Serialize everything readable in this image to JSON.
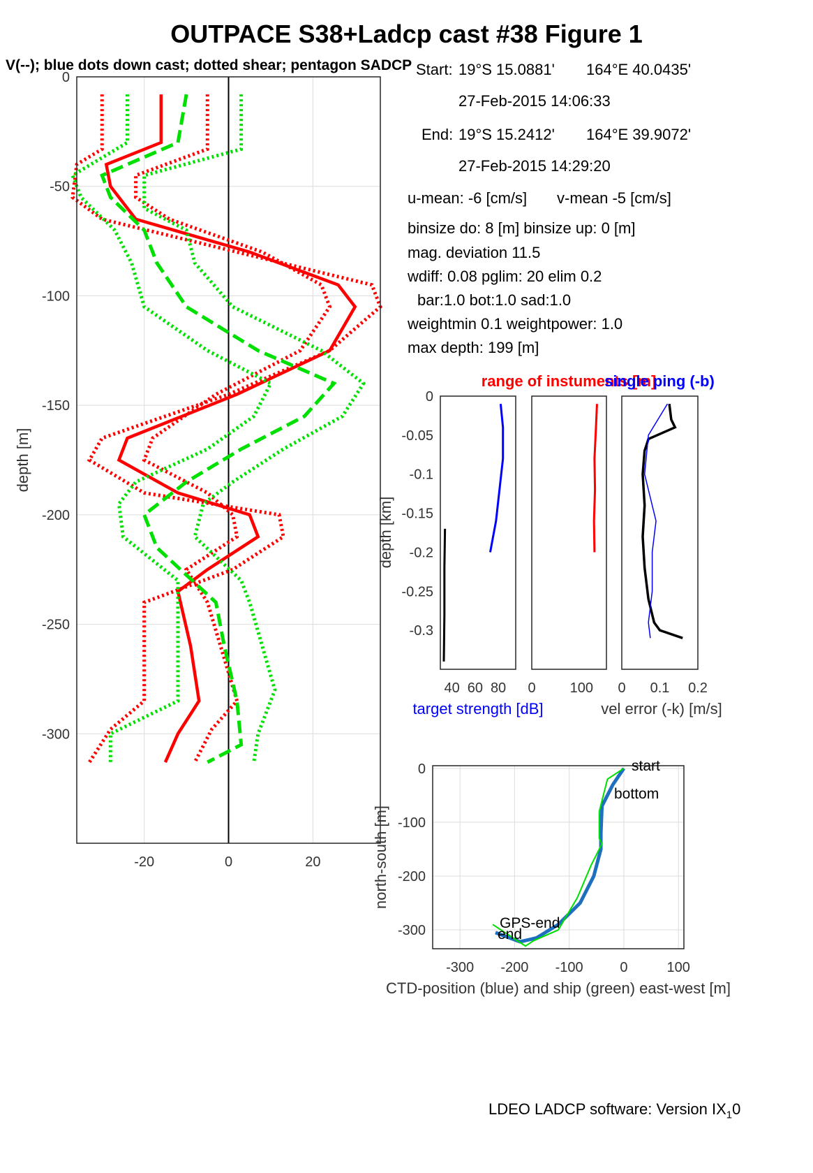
{
  "figure": {
    "title": "OUTPACE S38+Ladcp cast #38  Figure 1",
    "subtitle": "V(--); blue dots down cast; dotted shear; pentagon SADCP",
    "footer": "LDEO LADCP software: Version IX",
    "footer_sub": "1",
    "footer_suffix": "0"
  },
  "info": {
    "start_label": "Start:",
    "start_lat": "19°S 15.0881'",
    "start_lon": "164°E 40.0435'",
    "start_time": "27-Feb-2015 14:06:33",
    "end_label": "End:",
    "end_lat": "19°S 15.2412'",
    "end_lon": "164°E 39.9072'",
    "end_time": "27-Feb-2015 14:29:20",
    "u_mean": "u-mean:  -6 [cm/s]",
    "v_mean": "v-mean  -5 [cm/s]",
    "binsize": "binsize do: 8 [m]  binsize up:  0 [m]",
    "mag_dev": "mag. deviation 11.5",
    "wdiff": "wdiff: 0.08  pglim: 20  elim 0.2",
    "bar": "bar:1.0 bot:1.0 sad:1.0",
    "weight": "weightmin 0.1  weightpower: 1.0",
    "max_depth": "max depth: 199 [m]"
  },
  "colors": {
    "u": "#ff0000",
    "v": "#00e000",
    "blue": "#0000ff",
    "ctd": "#1f6fc0",
    "black": "#000000"
  },
  "chart_data": [
    {
      "type": "line",
      "name": "velocity-profile",
      "ylabel": "depth [m]",
      "xlim": [
        -36,
        36
      ],
      "ylim": [
        -350,
        0
      ],
      "xticks": [
        -20,
        0,
        20
      ],
      "yticks": [
        0,
        -50,
        -100,
        -150,
        -200,
        -250,
        -300
      ],
      "xtick_labels": [
        "-20",
        "0",
        "20"
      ],
      "ytick_labels": [
        "0",
        "-50",
        "-100",
        "-150",
        "-200",
        "-250",
        "-300"
      ],
      "grid": true,
      "series": [
        {
          "color": "#ff0000",
          "style": "solid-thick",
          "depth": [
            -8,
            -30,
            -40,
            -50,
            -65,
            -80,
            -95,
            -105,
            -125,
            -145,
            -165,
            -175,
            -190,
            -200,
            -210,
            -225,
            -235,
            -260,
            -285,
            -300,
            -313
          ],
          "values": [
            -16,
            -16,
            -29,
            -28,
            -22,
            5,
            26,
            30,
            24,
            2,
            -24,
            -26,
            -12,
            5,
            7,
            -5,
            -12,
            -9,
            -7,
            -12,
            -15
          ]
        },
        {
          "color": "#ff0000",
          "style": "dotted",
          "depth": [
            -8,
            -33,
            -40,
            -55,
            -65,
            -80,
            -95,
            -105,
            -125,
            -145,
            -165,
            -175,
            -190,
            -200,
            -210,
            -225,
            -240,
            -285,
            -298,
            -313
          ],
          "values": [
            -30,
            -30,
            -36,
            -37,
            -30,
            2,
            34,
            36,
            24,
            0,
            -30,
            -33,
            -20,
            12,
            13,
            1,
            -20,
            -20,
            -28,
            -33
          ]
        },
        {
          "color": "#ff0000",
          "style": "dotted",
          "depth": [
            -8,
            -33,
            -45,
            -55,
            -65,
            -80,
            -95,
            -105,
            -125,
            -145,
            -165,
            -175,
            -190,
            -200,
            -210,
            -225,
            -240,
            -285,
            -298,
            -313
          ],
          "values": [
            -5,
            -5,
            -22,
            -22,
            -14,
            8,
            22,
            24,
            17,
            -3,
            -18,
            -20,
            -5,
            1,
            2,
            -10,
            -5,
            2,
            -4,
            -8
          ]
        },
        {
          "color": "#00e000",
          "style": "dashed-thick",
          "depth": [
            -8,
            -30,
            -45,
            -55,
            -70,
            -85,
            -105,
            -125,
            -140,
            -155,
            -170,
            -185,
            -200,
            -215,
            -240,
            -260,
            -285,
            -305,
            -313
          ],
          "values": [
            -10,
            -12,
            -30,
            -28,
            -20,
            -17,
            -10,
            7,
            25,
            18,
            3,
            -10,
            -20,
            -17,
            -3,
            -1,
            2,
            3,
            -5
          ]
        },
        {
          "color": "#00e000",
          "style": "dotted",
          "depth": [
            -8,
            -33,
            -45,
            -60,
            -70,
            -85,
            -105,
            -125,
            -140,
            -155,
            -170,
            -185,
            -195,
            -210,
            -230,
            -240,
            -280,
            -300,
            -313
          ],
          "values": [
            3,
            3,
            -20,
            -20,
            -10,
            -8,
            1,
            22,
            32,
            27,
            13,
            1,
            -6,
            -8,
            3,
            5,
            11,
            7,
            6
          ]
        },
        {
          "color": "#00e000",
          "style": "dotted",
          "depth": [
            -8,
            -30,
            -45,
            -55,
            -70,
            -85,
            -105,
            -125,
            -140,
            -155,
            -170,
            -185,
            -195,
            -210,
            -230,
            -240,
            -285,
            -300,
            -313
          ],
          "values": [
            -24,
            -24,
            -37,
            -35,
            -27,
            -23,
            -20,
            -5,
            10,
            6,
            -5,
            -22,
            -26,
            -25,
            -12,
            -12,
            -12,
            -28,
            -28
          ]
        }
      ]
    },
    {
      "type": "line",
      "name": "target-strength",
      "xlabel": "target strength [dB]",
      "ylabel": "depth [km]",
      "xlim": [
        30,
        95
      ],
      "ylim": [
        -0.35,
        0
      ],
      "xtick_labels": [
        "40",
        "60",
        "80"
      ],
      "ytick_labels": [
        "0",
        "-0.05",
        "-0.1",
        "-0.15",
        "-0.2",
        "-0.25",
        "-0.3"
      ],
      "series": [
        {
          "color": "#0000ff",
          "depth": [
            -0.01,
            -0.04,
            -0.08,
            -0.12,
            -0.16,
            -0.2
          ],
          "values": [
            82,
            84,
            84,
            81,
            78,
            73
          ]
        },
        {
          "color": "#000000",
          "depth": [
            -0.17,
            -0.22,
            -0.28,
            -0.34
          ],
          "values": [
            34,
            33.5,
            33.5,
            33
          ]
        }
      ]
    },
    {
      "type": "line",
      "name": "range-of-instruments",
      "title": "range of instuments [m]",
      "xlim": [
        0,
        150
      ],
      "xtick_labels": [
        "0",
        "100"
      ],
      "ylim": [
        -0.35,
        0
      ],
      "series": [
        {
          "color": "#ff0000",
          "depth": [
            -0.01,
            -0.04,
            -0.08,
            -0.12,
            -0.16,
            -0.2
          ],
          "values": [
            131,
            129,
            126,
            127,
            125,
            126
          ]
        }
      ]
    },
    {
      "type": "line",
      "name": "velocity-error",
      "title": "single ping (-b)",
      "xlabel": "vel error (-k) [m/s]",
      "xlim": [
        0,
        0.2
      ],
      "xtick_labels": [
        "0",
        "0.1",
        "0.2"
      ],
      "ylim": [
        -0.35,
        0
      ],
      "series": [
        {
          "color": "#000000",
          "depth": [
            -0.01,
            -0.03,
            -0.04,
            -0.055,
            -0.07,
            -0.1,
            -0.14,
            -0.18,
            -0.22,
            -0.26,
            -0.29,
            -0.3,
            -0.31
          ],
          "values": [
            0.125,
            0.13,
            0.14,
            0.07,
            0.06,
            0.055,
            0.06,
            0.055,
            0.06,
            0.07,
            0.085,
            0.1,
            0.16
          ]
        },
        {
          "color": "#0000ff",
          "depth": [
            -0.01,
            -0.05,
            -0.1,
            -0.16,
            -0.2,
            -0.25,
            -0.29,
            -0.31
          ],
          "values": [
            0.12,
            0.07,
            0.06,
            0.09,
            0.08,
            0.08,
            0.07,
            0.075
          ]
        }
      ]
    },
    {
      "type": "line",
      "name": "ctd-ship-track",
      "xlabel": "CTD-position (blue) and ship (green) east-west [m]",
      "ylabel": "north-south [m]",
      "xlim": [
        -350,
        110
      ],
      "ylim": [
        -335,
        5
      ],
      "xtick_labels": [
        "-300",
        "-200",
        "-100",
        "0",
        "100"
      ],
      "ytick_labels": [
        "0",
        "-100",
        "-200",
        "-300"
      ],
      "annotations": [
        "start",
        "bottom",
        "GPS-end",
        "end"
      ],
      "series": [
        {
          "color": "#1f6fc0",
          "x": [
            0,
            -20,
            -40,
            -42,
            -42,
            -55,
            -80,
            -120,
            -160,
            -190,
            -235
          ],
          "y": [
            0,
            -30,
            -70,
            -120,
            -150,
            -200,
            -250,
            -290,
            -315,
            -322,
            -305
          ]
        },
        {
          "color": "#00e000",
          "x": [
            0,
            -30,
            -45,
            -45,
            -40,
            -60,
            -85,
            -120,
            -165,
            -180,
            -240
          ],
          "y": [
            0,
            -20,
            -80,
            -130,
            -140,
            -180,
            -240,
            -300,
            -320,
            -330,
            -290
          ]
        }
      ]
    }
  ]
}
